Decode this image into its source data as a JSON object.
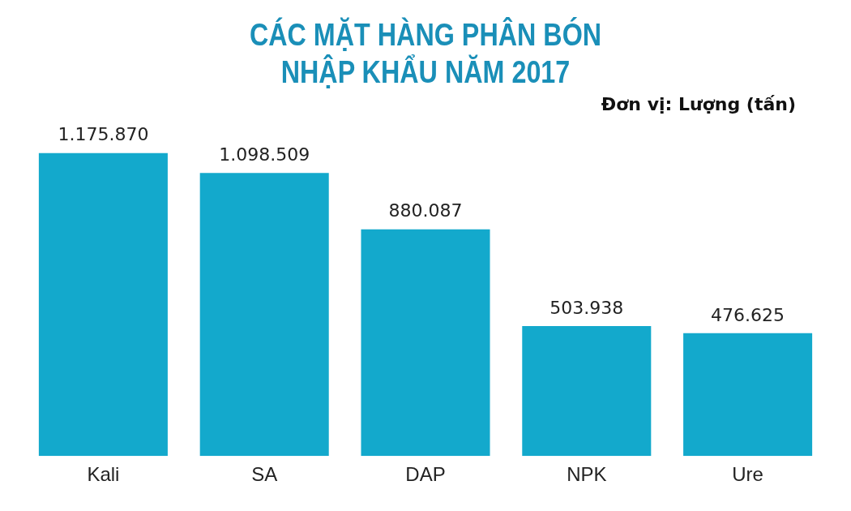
{
  "chart_data": {
    "type": "bar",
    "title": [
      "CÁC MẶT HÀNG PHÂN BÓN",
      "NHẬP KHẨU NĂM 2017"
    ],
    "subtitle": "Đơn vị: Lượng (tấn)",
    "categories": [
      "Kali",
      "SA",
      "DAP",
      "NPK",
      "Ure"
    ],
    "values": [
      1175870,
      1098509,
      880087,
      503938,
      476625
    ],
    "value_labels": [
      "1.175.870",
      "1.098.509",
      "880.087",
      "503.938",
      "476.625"
    ],
    "color": "#13a9cc",
    "grid": false,
    "legend": false
  }
}
